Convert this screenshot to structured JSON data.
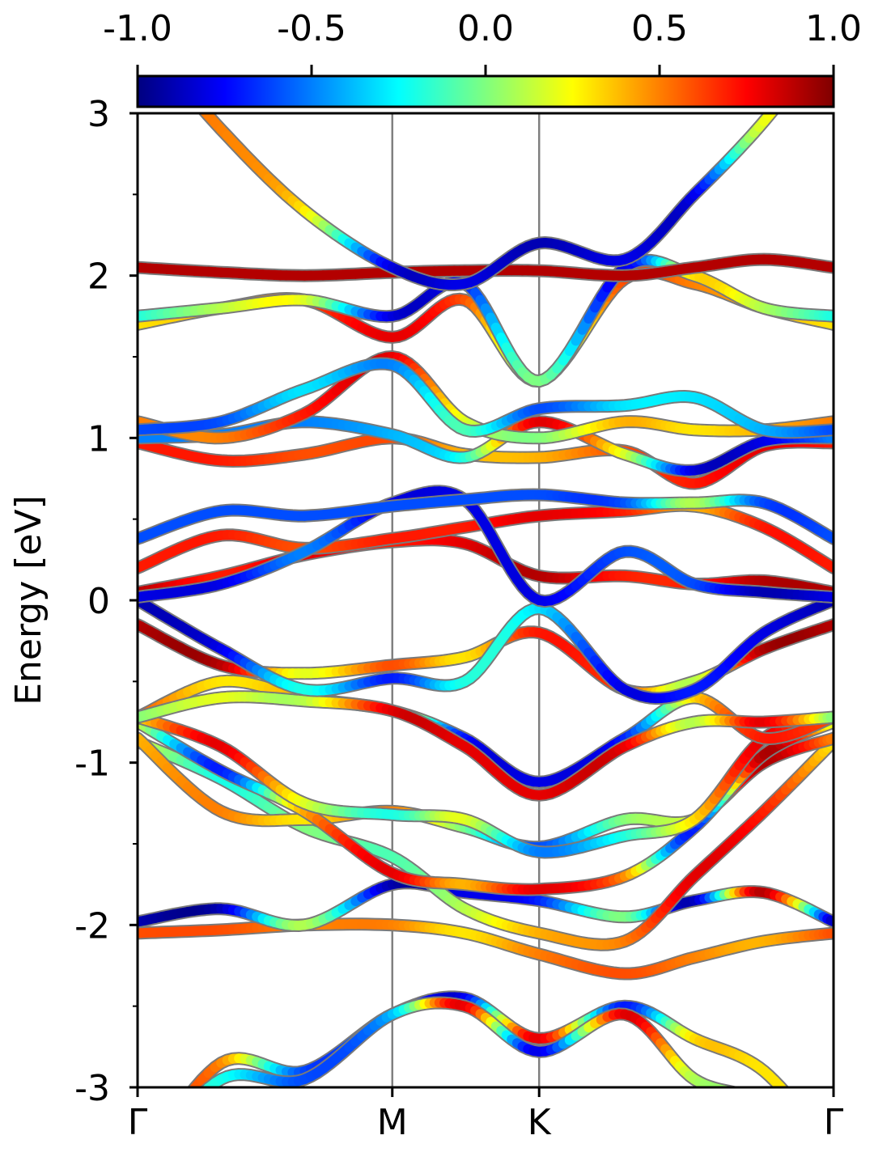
{
  "chart_data": {
    "type": "line",
    "ylabel": "Energy [eV]",
    "ylim": [
      -3,
      3
    ],
    "yticks": [
      3,
      2,
      1,
      0,
      -1,
      -2,
      -3
    ],
    "ytick_labels": [
      "3",
      "2",
      "1",
      "0",
      "-1",
      "-2",
      "-3"
    ],
    "x_kpoints": [
      {
        "label": "Γ",
        "x": 0.0
      },
      {
        "label": "M",
        "x": 0.366
      },
      {
        "label": "K",
        "x": 0.577
      },
      {
        "label": "Γ",
        "x": 1.0
      }
    ],
    "colorbar": {
      "range": [
        -1.0,
        1.0
      ],
      "ticks": [
        -1.0,
        -0.5,
        0.0,
        0.5,
        1.0
      ],
      "tick_labels": [
        "-1.0",
        "-0.5",
        "0.0",
        "0.5",
        "1.0"
      ],
      "colormap": "jet",
      "stops": [
        "#00007f",
        "#0000ff",
        "#007fff",
        "#00ffff",
        "#7fff7f",
        "#ffff00",
        "#ff7f00",
        "#ff0000",
        "#7f0000"
      ]
    },
    "bands_x": [
      0.0,
      0.12,
      0.24,
      0.366,
      0.47,
      0.577,
      0.7,
      0.8,
      0.9,
      1.0
    ],
    "bands": [
      {
        "e": [
          -2.05,
          -2.03,
          -2.0,
          -2.0,
          -2.05,
          -2.18,
          -2.3,
          -2.2,
          -2.1,
          -2.05
        ],
        "c": [
          0.6,
          0.6,
          0.5,
          0.5,
          0.3,
          0.5,
          0.6,
          0.5,
          0.4,
          0.6
        ]
      },
      {
        "e": [
          -1.98,
          -1.9,
          -2.0,
          -1.75,
          -1.8,
          -1.85,
          -1.95,
          -1.85,
          -1.8,
          -1.98
        ],
        "c": [
          -0.9,
          -0.9,
          0.1,
          -0.9,
          -0.8,
          -0.7,
          0.0,
          -0.9,
          0.9,
          -0.9
        ]
      },
      {
        "e": [
          -0.87,
          -1.1,
          -1.4,
          -1.58,
          -1.9,
          -2.05,
          -2.1,
          -1.7,
          -1.3,
          -0.87
        ],
        "c": [
          0.2,
          -0.2,
          0.0,
          -0.1,
          0.1,
          0.4,
          0.5,
          0.8,
          0.7,
          0.3
        ]
      },
      {
        "e": [
          -0.85,
          -1.3,
          -1.35,
          -1.3,
          -1.4,
          -1.52,
          -1.35,
          -1.35,
          -1.0,
          -0.85
        ],
        "c": [
          0.4,
          0.5,
          0.3,
          0.5,
          0.0,
          -0.6,
          0.0,
          0.2,
          0.9,
          0.5
        ]
      },
      {
        "e": [
          -0.75,
          -1.05,
          -1.3,
          -1.68,
          -1.75,
          -1.78,
          -1.7,
          -1.4,
          -0.95,
          -0.75
        ],
        "c": [
          0.2,
          -0.7,
          0.4,
          0.8,
          0.4,
          0.8,
          0.5,
          -0.7,
          0.9,
          0.2
        ]
      },
      {
        "e": [
          -0.72,
          -0.9,
          -1.25,
          -1.32,
          -1.35,
          -1.55,
          -1.45,
          -1.35,
          -0.85,
          -0.72
        ],
        "c": [
          0.3,
          0.8,
          0.2,
          -0.2,
          0.2,
          -0.5,
          -0.2,
          0.3,
          0.8,
          0.3
        ]
      },
      {
        "e": [
          -0.72,
          -0.5,
          -0.6,
          -0.68,
          -0.85,
          -1.12,
          -0.85,
          -0.6,
          -0.85,
          -0.72
        ],
        "c": [
          0.6,
          0.3,
          0.4,
          0.4,
          -0.7,
          -0.8,
          -0.7,
          0.3,
          0.7,
          0.6
        ]
      },
      {
        "e": [
          -0.72,
          -0.6,
          -0.62,
          -0.68,
          -0.9,
          -1.2,
          -0.9,
          -0.75,
          -0.75,
          -0.72
        ],
        "c": [
          0.0,
          0.2,
          0.1,
          0.8,
          0.8,
          0.8,
          0.8,
          0.1,
          0.8,
          0.0
        ]
      },
      {
        "e": [
          -0.15,
          -0.4,
          -0.45,
          -0.4,
          -0.35,
          -0.2,
          -0.55,
          -0.5,
          -0.3,
          -0.15
        ],
        "c": [
          0.9,
          0.9,
          0.2,
          0.6,
          0.3,
          0.7,
          0.6,
          0.1,
          0.9,
          0.9
        ]
      },
      {
        "e": [
          0.0,
          -0.3,
          -0.55,
          -0.48,
          -0.5,
          -0.05,
          -0.55,
          -0.55,
          -0.2,
          0.0
        ],
        "c": [
          -0.9,
          -0.8,
          -0.2,
          -0.7,
          -0.2,
          -0.3,
          -0.8,
          -0.7,
          -0.8,
          -0.9
        ]
      },
      {
        "e": [
          0.05,
          0.15,
          0.28,
          0.36,
          0.35,
          0.15,
          0.15,
          0.1,
          0.12,
          0.05
        ],
        "c": [
          0.9,
          0.7,
          0.8,
          0.7,
          0.8,
          0.9,
          0.7,
          0.7,
          0.9,
          0.9
        ]
      },
      {
        "e": [
          0.2,
          0.4,
          0.32,
          0.38,
          0.45,
          0.52,
          0.55,
          0.58,
          0.45,
          0.2
        ],
        "c": [
          0.7,
          0.7,
          0.6,
          0.7,
          0.7,
          0.8,
          0.7,
          0.4,
          0.7,
          0.7
        ]
      },
      {
        "e": [
          0.02,
          0.1,
          0.3,
          0.6,
          0.62,
          0.0,
          0.3,
          0.1,
          0.05,
          0.02
        ],
        "c": [
          -0.8,
          -0.8,
          -0.5,
          -0.8,
          -0.8,
          -0.8,
          -0.6,
          -0.6,
          -0.9,
          -0.8
        ]
      },
      {
        "e": [
          0.38,
          0.55,
          0.52,
          0.58,
          0.62,
          0.65,
          0.6,
          0.6,
          0.6,
          0.38
        ],
        "c": [
          -0.6,
          -0.6,
          -0.6,
          -0.6,
          -0.6,
          -0.6,
          -0.6,
          0.1,
          -0.6,
          -0.6
        ]
      },
      {
        "e": [
          0.97,
          0.86,
          0.9,
          1.0,
          0.9,
          0.88,
          0.92,
          0.72,
          0.95,
          0.97
        ],
        "c": [
          0.7,
          0.7,
          0.6,
          0.6,
          0.4,
          0.4,
          0.6,
          0.7,
          0.8,
          0.7
        ]
      },
      {
        "e": [
          1.0,
          1.02,
          1.1,
          1.02,
          0.88,
          1.1,
          0.9,
          0.8,
          0.98,
          1.0
        ],
        "c": [
          -0.5,
          -0.5,
          -0.5,
          -0.4,
          -0.2,
          0.8,
          0.2,
          -0.8,
          -0.8,
          -0.5
        ]
      },
      {
        "e": [
          1.1,
          1.0,
          1.15,
          1.5,
          1.1,
          1.0,
          1.1,
          1.05,
          1.05,
          1.1
        ],
        "c": [
          0.5,
          0.5,
          0.7,
          0.8,
          0.2,
          0.0,
          0.4,
          0.3,
          0.4,
          0.5
        ]
      },
      {
        "e": [
          1.05,
          1.1,
          1.3,
          1.45,
          1.05,
          1.18,
          1.2,
          1.25,
          1.05,
          1.05
        ],
        "c": [
          -0.6,
          -0.6,
          -0.3,
          -0.5,
          -0.1,
          -0.6,
          -0.3,
          -0.3,
          -0.4,
          -0.6
        ]
      },
      {
        "e": [
          1.7,
          1.8,
          1.85,
          1.62,
          1.85,
          1.35,
          1.98,
          1.95,
          1.8,
          1.7
        ],
        "c": [
          0.3,
          0.4,
          0.6,
          0.8,
          0.6,
          0.0,
          0.6,
          0.5,
          0.4,
          0.3
        ]
      },
      {
        "e": [
          1.75,
          1.8,
          1.85,
          1.75,
          1.95,
          1.35,
          2.05,
          2.0,
          1.8,
          1.75
        ],
        "c": [
          -0.2,
          0.1,
          0.2,
          -0.8,
          -0.7,
          0.0,
          -0.8,
          0.3,
          0.1,
          -0.2
        ]
      },
      {
        "e": [
          2.05,
          2.02,
          2.0,
          2.02,
          2.03,
          2.03,
          2.0,
          2.05,
          2.1,
          2.05
        ],
        "c": [
          0.9,
          0.9,
          0.9,
          0.9,
          0.9,
          0.9,
          0.9,
          0.9,
          0.9,
          0.9
        ]
      },
      {
        "e": [
          3.5,
          2.9,
          2.4,
          2.05,
          1.95,
          2.2,
          2.1,
          2.5,
          2.95,
          3.5
        ],
        "c": [
          0.5,
          0.5,
          0.3,
          -0.8,
          -0.8,
          -0.9,
          -0.8,
          -0.8,
          0.2,
          0.2
        ]
      },
      {
        "e": [
          -3.5,
          -2.85,
          -2.9,
          -2.55,
          -2.45,
          -2.7,
          -2.5,
          -2.7,
          -2.9,
          -3.4
        ],
        "c": [
          0.5,
          0.5,
          -0.6,
          -0.5,
          -0.8,
          0.8,
          -0.7,
          0.3,
          0.3,
          0.3
        ]
      },
      {
        "e": [
          -3.5,
          -2.95,
          -2.95,
          -2.55,
          -2.5,
          -2.78,
          -2.55,
          -2.95,
          -3.1,
          -3.5
        ],
        "c": [
          -0.2,
          -0.2,
          -0.6,
          -0.4,
          0.8,
          -0.8,
          0.8,
          0.1,
          0.1,
          0.1
        ]
      }
    ]
  }
}
